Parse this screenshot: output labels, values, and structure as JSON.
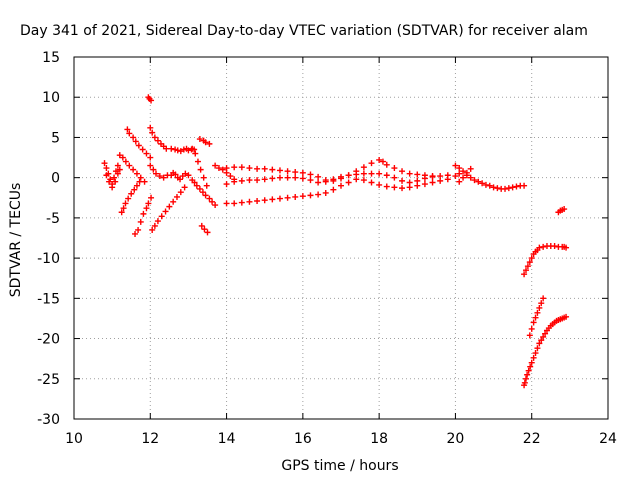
{
  "chart_data": {
    "type": "scatter",
    "title": "Day 341 of 2021, Sidereal Day-to-day VTEC variation (SDTVAR) for receiver alam",
    "xlabel": "GPS time / hours",
    "ylabel": "SDTVAR / TECUs",
    "xlim": [
      10,
      24
    ],
    "ylim": [
      -30,
      15
    ],
    "xticks": [
      10,
      12,
      14,
      16,
      18,
      20,
      22,
      24
    ],
    "yticks": [
      15,
      10,
      5,
      0,
      -5,
      -10,
      -15,
      -20,
      -25,
      -30
    ],
    "grid": true,
    "marker": "+",
    "color": "#ff0000",
    "series": [
      {
        "name": "sdtvar",
        "x": [
          10.8,
          10.85,
          10.9,
          10.95,
          11.0,
          11.05,
          11.1,
          11.15,
          10.85,
          10.92,
          11.0,
          11.08,
          11.15,
          11.2,
          11.25,
          11.3,
          11.35,
          11.42,
          11.5,
          11.58,
          11.65,
          11.72,
          11.2,
          11.28,
          11.36,
          11.45,
          11.55,
          11.65,
          11.75,
          11.85,
          11.4,
          11.45,
          11.55,
          11.62,
          11.7,
          11.8,
          11.9,
          12.0,
          11.6,
          11.68,
          11.75,
          11.82,
          11.9,
          11.95,
          12.02,
          11.95,
          11.98,
          12.02,
          12.0,
          12.05,
          12.12,
          12.2,
          12.28,
          12.35,
          12.42,
          12.05,
          12.12,
          12.2,
          12.3,
          12.4,
          12.5,
          12.6,
          12.7,
          12.8,
          12.9,
          12.0,
          12.08,
          12.15,
          12.25,
          12.35,
          12.45,
          12.55,
          12.65,
          12.72,
          12.8,
          12.88,
          12.95,
          13.0,
          13.08,
          13.15,
          12.55,
          12.6,
          12.66,
          12.72,
          12.78,
          12.85,
          12.92,
          13.0,
          13.1,
          13.16,
          13.22,
          13.3,
          13.38,
          13.45,
          13.55,
          13.62,
          13.7,
          13.1,
          13.18,
          13.25,
          13.32,
          13.4,
          13.48,
          13.3,
          13.4,
          13.45,
          13.55,
          13.35,
          13.42,
          13.5,
          13.7,
          13.8,
          13.9,
          14.0,
          14.1,
          14.2,
          14.0,
          14.2,
          14.4,
          14.6,
          14.8,
          15.0,
          15.2,
          15.4,
          15.6,
          15.8,
          16.0,
          16.2,
          16.4,
          16.6,
          16.8,
          17.0,
          17.2,
          17.4,
          17.6,
          17.8,
          18.0,
          18.1,
          18.2,
          18.4,
          18.6,
          18.8,
          19.0,
          19.2,
          19.4,
          14.0,
          14.2,
          14.4,
          14.6,
          14.8,
          15.0,
          15.2,
          15.4,
          15.6,
          15.8,
          16.0,
          16.2,
          16.4,
          16.6,
          16.8,
          17.0,
          17.2,
          17.4,
          17.6,
          17.8,
          18.0,
          18.2,
          18.4,
          18.6,
          18.8,
          19.0,
          19.2,
          19.4,
          19.6,
          19.8,
          14.0,
          14.2,
          14.4,
          14.6,
          14.8,
          15.0,
          15.2,
          15.4,
          15.6,
          15.8,
          16.0,
          16.2,
          16.4,
          16.6,
          16.8,
          17.0,
          17.2,
          17.4,
          17.6,
          17.8,
          18.0,
          18.2,
          18.4,
          18.6,
          18.8,
          19.0,
          19.2,
          19.4,
          19.6,
          19.8,
          20.0,
          20.1,
          20.0,
          20.1,
          20.2,
          20.3,
          20.4,
          20.5,
          20.6,
          20.7,
          20.8,
          20.9,
          21.0,
          21.1,
          21.2,
          21.3,
          21.4,
          21.5,
          21.6,
          21.7,
          21.8,
          20.1,
          20.2,
          20.3,
          20.4,
          21.8,
          21.85,
          21.9,
          21.95,
          22.0,
          22.05,
          22.1,
          22.15,
          22.2,
          22.3,
          22.4,
          22.5,
          22.6,
          22.7,
          22.8,
          22.85,
          22.9,
          22.7,
          22.75,
          22.8,
          22.85,
          21.8,
          21.82,
          21.85,
          21.88,
          21.92,
          21.96,
          22.0,
          22.05,
          22.1,
          22.15,
          22.2,
          22.25,
          22.3,
          22.35,
          22.4,
          22.45,
          22.5,
          22.55,
          22.6,
          22.65,
          22.7,
          22.75,
          22.8,
          22.85,
          22.9,
          21.95,
          22.0,
          22.05,
          22.1,
          22.15,
          22.2,
          22.25,
          22.3
        ],
        "y": [
          1.8,
          1.2,
          0.5,
          -0.2,
          -0.8,
          0.0,
          0.8,
          1.5,
          0.3,
          -0.5,
          -1.2,
          -0.5,
          0.5,
          1.0,
          -4.3,
          -3.8,
          -3.2,
          -2.6,
          -2.0,
          -1.5,
          -1.0,
          -0.5,
          2.8,
          2.5,
          2.0,
          1.5,
          1.0,
          0.5,
          0.0,
          -0.5,
          6.0,
          5.5,
          5.0,
          4.5,
          4.0,
          3.5,
          3.0,
          2.5,
          -7.0,
          -6.5,
          -5.5,
          -4.5,
          -3.8,
          -3.2,
          -2.5,
          10.0,
          9.8,
          9.6,
          6.2,
          5.6,
          5.0,
          4.6,
          4.2,
          3.9,
          3.6,
          -6.5,
          -6.0,
          -5.4,
          -4.8,
          -4.2,
          -3.6,
          -3.0,
          -2.4,
          -1.8,
          -1.2,
          1.5,
          1.0,
          0.5,
          0.2,
          0.0,
          0.3,
          3.6,
          3.5,
          3.4,
          3.3,
          3.5,
          3.6,
          3.4,
          3.5,
          3.5,
          0.3,
          0.6,
          0.4,
          0.0,
          -0.2,
          0.2,
          0.5,
          0.3,
          -0.3,
          -0.6,
          -1.0,
          -1.4,
          -1.8,
          -2.2,
          -2.6,
          -3.0,
          -3.4,
          3.6,
          3.0,
          2.0,
          1.0,
          0.0,
          -1.0,
          4.8,
          4.6,
          4.4,
          4.2,
          -6.0,
          -6.4,
          -6.8,
          1.5,
          1.2,
          1.0,
          0.6,
          0.2,
          -0.2,
          1.2,
          1.3,
          1.3,
          1.2,
          1.1,
          1.1,
          1.0,
          0.9,
          0.8,
          0.7,
          0.6,
          0.4,
          0.1,
          -0.3,
          -0.4,
          -0.1,
          0.3,
          0.8,
          1.3,
          1.8,
          2.2,
          2.0,
          1.6,
          1.2,
          0.8,
          0.5,
          0.4,
          0.3,
          0.2,
          -0.8,
          -0.5,
          -0.4,
          -0.3,
          -0.3,
          -0.2,
          -0.1,
          0.0,
          0.0,
          0.0,
          -0.1,
          -0.3,
          -0.6,
          -0.5,
          -0.2,
          0.1,
          0.3,
          0.4,
          0.5,
          0.5,
          0.5,
          0.3,
          0.0,
          -0.4,
          -0.6,
          -0.4,
          -0.1,
          0.1,
          0.2,
          0.3,
          -3.2,
          -3.2,
          -3.1,
          -3.0,
          -2.9,
          -2.8,
          -2.7,
          -2.6,
          -2.5,
          -2.4,
          -2.3,
          -2.2,
          -2.1,
          -1.9,
          -1.5,
          -1.0,
          -0.6,
          -0.2,
          -0.3,
          -0.6,
          -0.9,
          -1.1,
          -1.2,
          -1.3,
          -1.2,
          -1.0,
          -0.8,
          -0.6,
          -0.4,
          -0.2,
          0.2,
          0.5,
          1.5,
          1.2,
          0.8,
          0.3,
          0.0,
          -0.3,
          -0.5,
          -0.7,
          -0.9,
          -1.0,
          -1.2,
          -1.3,
          -1.4,
          -1.4,
          -1.3,
          -1.2,
          -1.1,
          -1.0,
          -1.0,
          -0.5,
          0.0,
          0.6,
          1.1,
          -12.0,
          -11.5,
          -11.0,
          -10.5,
          -10.0,
          -9.5,
          -9.2,
          -9.0,
          -8.7,
          -8.6,
          -8.5,
          -8.5,
          -8.5,
          -8.6,
          -8.6,
          -8.6,
          -8.7,
          -4.3,
          -4.1,
          -4.0,
          -3.9,
          -25.8,
          -25.5,
          -25.0,
          -24.5,
          -24.0,
          -23.5,
          -23.0,
          -22.4,
          -21.8,
          -21.2,
          -20.6,
          -20.2,
          -19.8,
          -19.4,
          -19.0,
          -18.7,
          -18.4,
          -18.2,
          -18.0,
          -17.8,
          -17.7,
          -17.6,
          -17.5,
          -17.4,
          -17.3,
          -19.6,
          -18.8,
          -18.0,
          -17.4,
          -16.8,
          -16.2,
          -15.6,
          -15.0
        ]
      }
    ]
  }
}
